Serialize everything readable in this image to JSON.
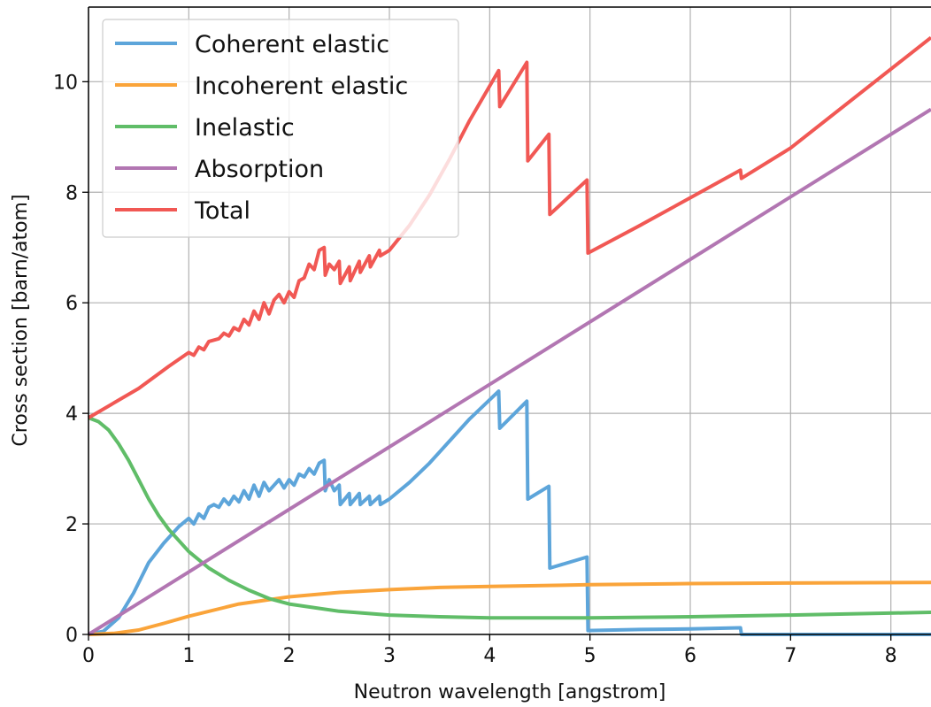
{
  "chart_data": {
    "type": "line",
    "title": "",
    "xlabel": "Neutron wavelength [angstrom]",
    "ylabel": "Cross section [barn/atom]",
    "xlim": [
      0,
      8.4
    ],
    "ylim": [
      0,
      11.35
    ],
    "xticks": [
      0,
      1,
      2,
      3,
      4,
      5,
      6,
      7,
      8
    ],
    "yticks": [
      0,
      2,
      4,
      6,
      8,
      10
    ],
    "xtick_labels": [
      "0",
      "1",
      "2",
      "3",
      "4",
      "5",
      "6",
      "7",
      "8"
    ],
    "ytick_labels": [
      "0",
      "2",
      "4",
      "6",
      "8",
      "10"
    ],
    "grid": true,
    "legend_position": "top-left",
    "series": [
      {
        "name": "Coherent elastic",
        "color": "#5da5da",
        "x": [
          0,
          0.15,
          0.3,
          0.45,
          0.6,
          0.75,
          0.9,
          1.0,
          1.05,
          1.1,
          1.15,
          1.2,
          1.25,
          1.3,
          1.35,
          1.4,
          1.45,
          1.5,
          1.55,
          1.6,
          1.65,
          1.7,
          1.75,
          1.8,
          1.85,
          1.9,
          1.95,
          2.0,
          2.05,
          2.1,
          2.15,
          2.2,
          2.25,
          2.3,
          2.35,
          2.36,
          2.4,
          2.45,
          2.5,
          2.51,
          2.6,
          2.61,
          2.7,
          2.71,
          2.8,
          2.81,
          2.9,
          2.91,
          3.0,
          3.2,
          3.4,
          3.6,
          3.8,
          4.09,
          4.1,
          4.37,
          4.38,
          4.59,
          4.6,
          4.97,
          4.98,
          5.5,
          6.0,
          6.5,
          6.51,
          7.0,
          8.4
        ],
        "y": [
          0.0,
          0.06,
          0.3,
          0.75,
          1.3,
          1.65,
          1.95,
          2.1,
          2.0,
          2.18,
          2.1,
          2.3,
          2.35,
          2.3,
          2.45,
          2.35,
          2.5,
          2.4,
          2.6,
          2.45,
          2.7,
          2.5,
          2.75,
          2.6,
          2.7,
          2.8,
          2.65,
          2.8,
          2.7,
          2.9,
          2.85,
          3.0,
          2.9,
          3.1,
          3.15,
          2.6,
          2.8,
          2.6,
          2.7,
          2.35,
          2.55,
          2.35,
          2.55,
          2.35,
          2.5,
          2.35,
          2.5,
          2.35,
          2.45,
          2.75,
          3.1,
          3.5,
          3.9,
          4.4,
          3.73,
          4.22,
          2.45,
          2.68,
          1.2,
          1.4,
          0.07,
          0.09,
          0.1,
          0.12,
          0.0,
          0.0,
          0.0
        ]
      },
      {
        "name": "Incoherent elastic",
        "color": "#faa43a",
        "x": [
          0,
          0.25,
          0.5,
          0.75,
          1.0,
          1.5,
          2.0,
          2.5,
          3.0,
          3.5,
          4.0,
          5.0,
          6.0,
          7.0,
          8.4
        ],
        "y": [
          0.0,
          0.02,
          0.08,
          0.2,
          0.33,
          0.55,
          0.68,
          0.76,
          0.81,
          0.85,
          0.87,
          0.9,
          0.92,
          0.93,
          0.94
        ]
      },
      {
        "name": "Inelastic",
        "color": "#60bd68",
        "x": [
          0,
          0.1,
          0.2,
          0.3,
          0.4,
          0.5,
          0.6,
          0.7,
          0.8,
          0.9,
          1.0,
          1.2,
          1.4,
          1.6,
          1.8,
          2.0,
          2.5,
          3.0,
          3.5,
          4.0,
          5.0,
          6.0,
          7.0,
          8.4
        ],
        "y": [
          3.92,
          3.85,
          3.7,
          3.45,
          3.15,
          2.8,
          2.45,
          2.15,
          1.9,
          1.7,
          1.5,
          1.2,
          0.98,
          0.8,
          0.65,
          0.55,
          0.42,
          0.35,
          0.32,
          0.3,
          0.3,
          0.32,
          0.35,
          0.4
        ]
      },
      {
        "name": "Absorption",
        "color": "#b276b2",
        "x": [
          0,
          8.4
        ],
        "y": [
          0.0,
          9.5
        ]
      },
      {
        "name": "Total",
        "color": "#f15854",
        "x": [
          0,
          0.5,
          0.8,
          1.0,
          1.05,
          1.1,
          1.15,
          1.2,
          1.3,
          1.35,
          1.4,
          1.45,
          1.5,
          1.55,
          1.6,
          1.65,
          1.7,
          1.75,
          1.8,
          1.85,
          1.9,
          1.95,
          2.0,
          2.05,
          2.1,
          2.15,
          2.2,
          2.25,
          2.3,
          2.35,
          2.36,
          2.4,
          2.45,
          2.5,
          2.51,
          2.6,
          2.61,
          2.7,
          2.71,
          2.8,
          2.81,
          2.9,
          2.91,
          3.0,
          3.2,
          3.4,
          3.6,
          3.8,
          4.09,
          4.1,
          4.37,
          4.38,
          4.59,
          4.6,
          4.97,
          4.98,
          5.5,
          6.0,
          6.5,
          6.51,
          7.0,
          8.4
        ],
        "y": [
          3.92,
          4.45,
          4.85,
          5.1,
          5.05,
          5.2,
          5.15,
          5.3,
          5.35,
          5.45,
          5.4,
          5.55,
          5.5,
          5.7,
          5.6,
          5.85,
          5.7,
          6.0,
          5.8,
          6.05,
          6.15,
          6.0,
          6.2,
          6.1,
          6.4,
          6.45,
          6.7,
          6.6,
          6.95,
          7.0,
          6.5,
          6.7,
          6.6,
          6.75,
          6.35,
          6.65,
          6.4,
          6.75,
          6.55,
          6.85,
          6.65,
          6.95,
          6.85,
          6.95,
          7.4,
          7.95,
          8.6,
          9.3,
          10.2,
          9.55,
          10.35,
          8.57,
          9.05,
          7.6,
          8.22,
          6.9,
          7.4,
          7.9,
          8.4,
          8.25,
          8.8,
          10.8
        ]
      }
    ]
  }
}
